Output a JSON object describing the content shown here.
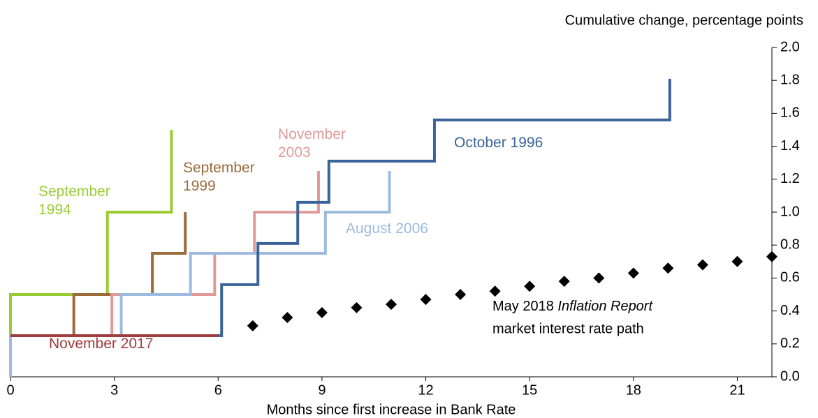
{
  "chart_data": {
    "type": "line",
    "y_axis_label": "Cumulative change, percentage points",
    "x_axis_label": "Months since first increase in Bank Rate",
    "xlim": [
      0,
      22
    ],
    "xticks": [
      0,
      3,
      6,
      9,
      12,
      15,
      18,
      21
    ],
    "ylim": [
      0,
      2
    ],
    "yticks": [
      {
        "value": 0,
        "label": "0.0"
      },
      {
        "value": 0.2,
        "label": "0.2"
      },
      {
        "value": 0.4,
        "label": "0.4"
      },
      {
        "value": 0.6,
        "label": "0.6"
      },
      {
        "value": 0.8,
        "label": "0.8"
      },
      {
        "value": 1,
        "label": "1.0"
      },
      {
        "value": 1.2,
        "label": "1.2"
      },
      {
        "value": 1.4,
        "label": "1.4"
      },
      {
        "value": 1.6,
        "label": "1.6"
      },
      {
        "value": 1.8,
        "label": "1.8"
      },
      {
        "value": 2,
        "label": "2.0"
      }
    ],
    "series": [
      {
        "name": "September 1994",
        "color": "#99cc33",
        "x": [
          0,
          0,
          2.8,
          2.8,
          4.65,
          4.65
        ],
        "values": [
          0.25,
          0.5,
          0.5,
          1.0,
          1.0,
          1.5
        ]
      },
      {
        "name": "September 1999",
        "color": "#9c6b3c",
        "x": [
          0,
          1.83,
          1.83,
          4.1,
          4.1,
          5.05,
          5.05
        ],
        "values": [
          0.25,
          0.25,
          0.5,
          0.5,
          0.75,
          0.75,
          1.0
        ]
      },
      {
        "name": "November 2003",
        "color": "#e09a9a",
        "x": [
          2.93,
          2.93,
          5.9,
          5.9,
          7.05,
          7.05,
          8.9,
          8.9
        ],
        "values": [
          0.25,
          0.5,
          0.5,
          0.75,
          0.75,
          1.0,
          1.0,
          1.25
        ]
      },
      {
        "name": "August 2006",
        "color": "#9dbbe0",
        "x": [
          0,
          0,
          3.2,
          3.2,
          5.2,
          5.2,
          9.1,
          9.1,
          10.95,
          10.95
        ],
        "values": [
          0,
          0.25,
          0.25,
          0.5,
          0.5,
          0.75,
          0.75,
          1.0,
          1.0,
          1.25
        ]
      },
      {
        "name": "October 1996",
        "color": "#3a6399",
        "x": [
          0,
          6.1,
          6.1,
          7.15,
          7.15,
          8.3,
          8.3,
          9.2,
          9.2,
          12.25,
          12.25,
          19.05,
          19.05
        ],
        "values": [
          0.25,
          0.25,
          0.56,
          0.56,
          0.81,
          0.81,
          1.06,
          1.06,
          1.31,
          1.31,
          1.56,
          1.56,
          1.81
        ]
      },
      {
        "name": "November 2017",
        "color": "#a03c3c",
        "x": [
          0,
          6.0
        ],
        "values": [
          0.25,
          0.25
        ]
      },
      {
        "marker": "diamond",
        "color": "#000000",
        "x": [
          7,
          8,
          9,
          10,
          11,
          12,
          13,
          14,
          15,
          16,
          17,
          18,
          19,
          20,
          21,
          22
        ],
        "values": [
          0.31,
          0.36,
          0.39,
          0.42,
          0.44,
          0.47,
          0.5,
          0.52,
          0.55,
          0.58,
          0.6,
          0.63,
          0.66,
          0.68,
          0.7,
          0.73
        ]
      }
    ],
    "annotation": {
      "parts": [
        "May 2018 ",
        "Inflation Report"
      ],
      "line2": "market interest rate path"
    }
  }
}
